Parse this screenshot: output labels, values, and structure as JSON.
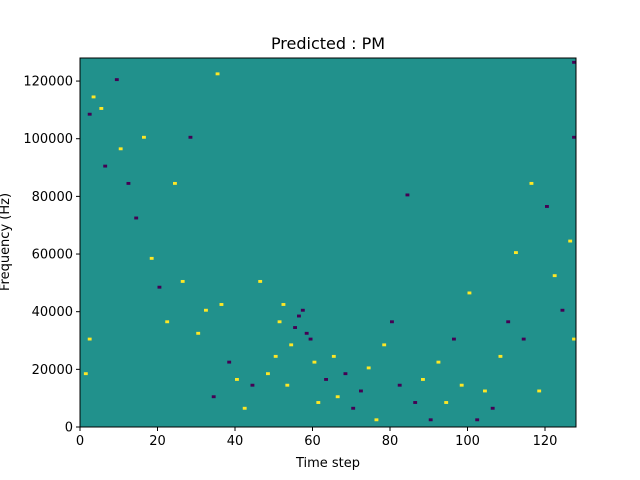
{
  "chart_data": {
    "type": "heatmap",
    "title": "Predicted : PM",
    "xlabel": "Time step",
    "ylabel": "Frequency (Hz)",
    "xlim": [
      0,
      128
    ],
    "ylim": [
      0,
      128000
    ],
    "x_ticks": [
      0,
      20,
      40,
      60,
      80,
      100,
      120
    ],
    "y_ticks": [
      0,
      20000,
      40000,
      60000,
      80000,
      100000,
      120000
    ],
    "x_tick_labels": [
      "0",
      "20",
      "40",
      "60",
      "80",
      "100",
      "120"
    ],
    "y_tick_labels": [
      "0",
      "20000",
      "40000",
      "60000",
      "80000",
      "100000",
      "120000"
    ],
    "value_levels": [
      -1,
      0,
      1
    ],
    "colors": {
      "-1": "#440154",
      "0": "#21918c",
      "1": "#fde725"
    },
    "background_value": 0,
    "cells": [
      {
        "t": 1,
        "f": 18,
        "v": 1
      },
      {
        "t": 2,
        "f": 30,
        "v": 1
      },
      {
        "t": 3,
        "f": 114,
        "v": 1
      },
      {
        "t": 2,
        "f": 108,
        "v": -1
      },
      {
        "t": 5,
        "f": 110,
        "v": 1
      },
      {
        "t": 6,
        "f": 90,
        "v": -1
      },
      {
        "t": 9,
        "f": 120,
        "v": -1
      },
      {
        "t": 10,
        "f": 96,
        "v": 1
      },
      {
        "t": 12,
        "f": 84,
        "v": -1
      },
      {
        "t": 14,
        "f": 72,
        "v": -1
      },
      {
        "t": 16,
        "f": 100,
        "v": 1
      },
      {
        "t": 18,
        "f": 58,
        "v": 1
      },
      {
        "t": 20,
        "f": 48,
        "v": -1
      },
      {
        "t": 22,
        "f": 36,
        "v": 1
      },
      {
        "t": 24,
        "f": 84,
        "v": 1
      },
      {
        "t": 26,
        "f": 50,
        "v": 1
      },
      {
        "t": 28,
        "f": 100,
        "v": -1
      },
      {
        "t": 30,
        "f": 32,
        "v": 1
      },
      {
        "t": 32,
        "f": 40,
        "v": 1
      },
      {
        "t": 34,
        "f": 10,
        "v": -1
      },
      {
        "t": 35,
        "f": 122,
        "v": 1
      },
      {
        "t": 36,
        "f": 42,
        "v": 1
      },
      {
        "t": 38,
        "f": 22,
        "v": -1
      },
      {
        "t": 40,
        "f": 16,
        "v": 1
      },
      {
        "t": 42,
        "f": 6,
        "v": 1
      },
      {
        "t": 44,
        "f": 14,
        "v": -1
      },
      {
        "t": 46,
        "f": 50,
        "v": 1
      },
      {
        "t": 48,
        "f": 18,
        "v": 1
      },
      {
        "t": 50,
        "f": 24,
        "v": 1
      },
      {
        "t": 51,
        "f": 36,
        "v": 1
      },
      {
        "t": 52,
        "f": 42,
        "v": 1
      },
      {
        "t": 53,
        "f": 14,
        "v": 1
      },
      {
        "t": 54,
        "f": 28,
        "v": 1
      },
      {
        "t": 55,
        "f": 34,
        "v": -1
      },
      {
        "t": 56,
        "f": 38,
        "v": -1
      },
      {
        "t": 57,
        "f": 40,
        "v": -1
      },
      {
        "t": 58,
        "f": 32,
        "v": -1
      },
      {
        "t": 59,
        "f": 30,
        "v": -1
      },
      {
        "t": 60,
        "f": 22,
        "v": 1
      },
      {
        "t": 61,
        "f": 8,
        "v": 1
      },
      {
        "t": 63,
        "f": 16,
        "v": -1
      },
      {
        "t": 65,
        "f": 24,
        "v": 1
      },
      {
        "t": 66,
        "f": 10,
        "v": 1
      },
      {
        "t": 68,
        "f": 18,
        "v": -1
      },
      {
        "t": 70,
        "f": 6,
        "v": -1
      },
      {
        "t": 72,
        "f": 12,
        "v": -1
      },
      {
        "t": 74,
        "f": 20,
        "v": 1
      },
      {
        "t": 76,
        "f": 2,
        "v": 1
      },
      {
        "t": 78,
        "f": 28,
        "v": 1
      },
      {
        "t": 80,
        "f": 36,
        "v": -1
      },
      {
        "t": 82,
        "f": 14,
        "v": -1
      },
      {
        "t": 84,
        "f": 80,
        "v": -1
      },
      {
        "t": 86,
        "f": 8,
        "v": -1
      },
      {
        "t": 88,
        "f": 16,
        "v": 1
      },
      {
        "t": 90,
        "f": 2,
        "v": -1
      },
      {
        "t": 92,
        "f": 22,
        "v": 1
      },
      {
        "t": 94,
        "f": 8,
        "v": 1
      },
      {
        "t": 96,
        "f": 30,
        "v": -1
      },
      {
        "t": 98,
        "f": 14,
        "v": 1
      },
      {
        "t": 100,
        "f": 46,
        "v": 1
      },
      {
        "t": 102,
        "f": 2,
        "v": -1
      },
      {
        "t": 104,
        "f": 12,
        "v": 1
      },
      {
        "t": 106,
        "f": 6,
        "v": -1
      },
      {
        "t": 108,
        "f": 24,
        "v": 1
      },
      {
        "t": 110,
        "f": 36,
        "v": -1
      },
      {
        "t": 112,
        "f": 60,
        "v": 1
      },
      {
        "t": 114,
        "f": 30,
        "v": -1
      },
      {
        "t": 116,
        "f": 84,
        "v": 1
      },
      {
        "t": 118,
        "f": 12,
        "v": 1
      },
      {
        "t": 120,
        "f": 76,
        "v": -1
      },
      {
        "t": 122,
        "f": 52,
        "v": 1
      },
      {
        "t": 124,
        "f": 40,
        "v": -1
      },
      {
        "t": 126,
        "f": 64,
        "v": 1
      },
      {
        "t": 127,
        "f": 100,
        "v": -1
      },
      {
        "t": 127,
        "f": 126,
        "v": -1
      },
      {
        "t": 127,
        "f": 30,
        "v": 1
      }
    ]
  }
}
